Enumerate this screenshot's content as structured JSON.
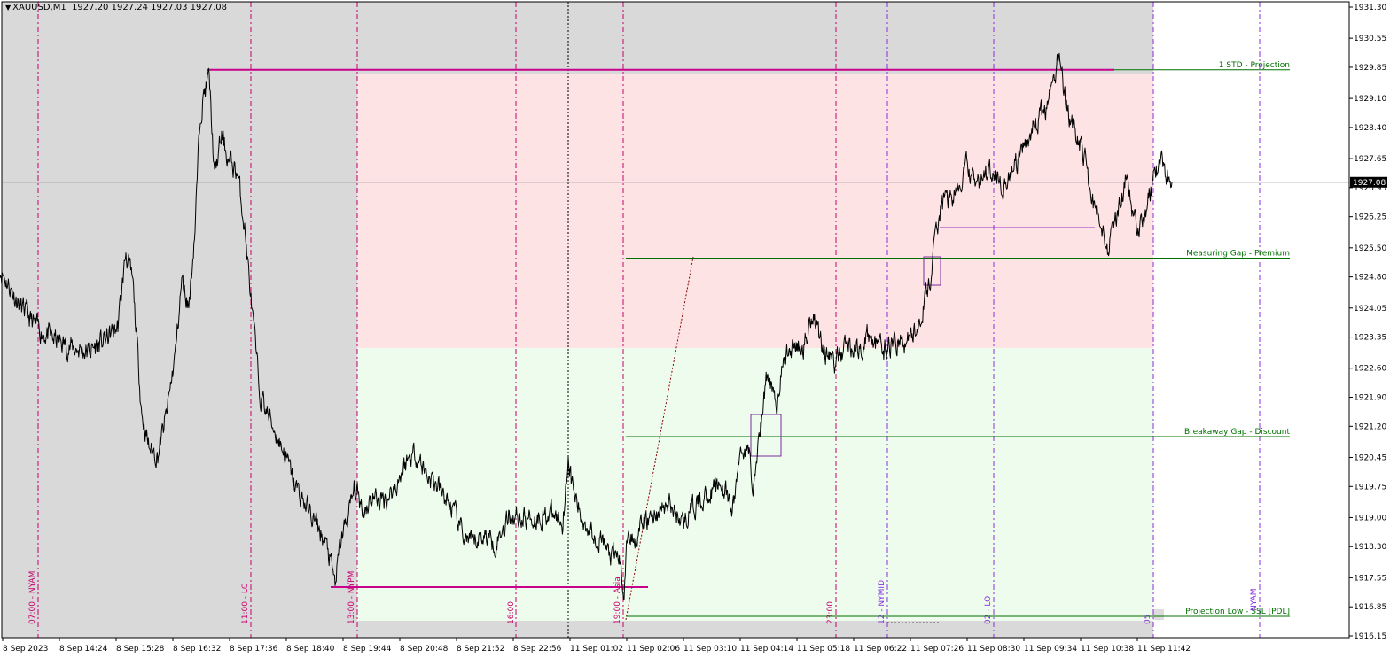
{
  "header": {
    "symbol": "XAUUSD,M1",
    "ohlc": "1927.20 1927.24 1927.03 1927.08"
  },
  "colors": {
    "premium_zone": "#fde3e3",
    "discount_zone": "#eefcee",
    "off_session": "#d9d9d9",
    "price_line": "#000000",
    "session_line": "#c8006e",
    "future_line": "#8a2be2",
    "level_line": "#007000",
    "level_text": "#007000",
    "hl_line": "#c8008c"
  },
  "chart_data": {
    "type": "line",
    "symbol": "XAUUSD",
    "timeframe": "M1",
    "current_price": "1927.08",
    "ylim": [
      1916.15,
      1931.3
    ],
    "y_ticks": [
      "1931.30",
      "1930.55",
      "1929.85",
      "1929.10",
      "1928.40",
      "1927.65",
      "1926.95",
      "1926.25",
      "1925.50",
      "1924.80",
      "1924.05",
      "1923.35",
      "1922.60",
      "1921.90",
      "1921.20",
      "1920.45",
      "1919.75",
      "1919.00",
      "1918.30",
      "1917.55",
      "1916.85",
      "1916.15"
    ],
    "x_ticks": [
      "8 Sep 2023",
      "8 Sep 14:24",
      "8 Sep 15:28",
      "8 Sep 16:32",
      "8 Sep 17:36",
      "8 Sep 18:40",
      "8 Sep 19:44",
      "8 Sep 20:48",
      "8 Sep 21:52",
      "8 Sep 22:56",
      "11 Sep 01:02",
      "11 Sep 02:06",
      "11 Sep 03:10",
      "11 Sep 04:14",
      "11 Sep 05:18",
      "11 Sep 06:22",
      "11 Sep 07:26",
      "11 Sep 08:30",
      "11 Sep 09:34",
      "11 Sep 10:38",
      "11 Sep 11:42"
    ],
    "series": [
      {
        "values": [
          [
            0,
            1925.0
          ],
          [
            20,
            1924.2
          ],
          [
            40,
            1923.6
          ],
          [
            60,
            1923.3
          ],
          [
            80,
            1923.1
          ],
          [
            100,
            1923.0
          ],
          [
            120,
            1923.3
          ],
          [
            133,
            1923.6
          ],
          [
            142,
            1925.4
          ],
          [
            150,
            1924.6
          ],
          [
            160,
            1921.5
          ],
          [
            168,
            1920.7
          ],
          [
            178,
            1920.5
          ],
          [
            188,
            1921.5
          ],
          [
            198,
            1923.0
          ],
          [
            205,
            1924.7
          ],
          [
            213,
            1924.1
          ],
          [
            220,
            1926.0
          ],
          [
            226,
            1928.8
          ],
          [
            231,
            1929.3
          ],
          [
            236,
            1929.6
          ],
          [
            242,
            1927.2
          ],
          [
            250,
            1928.2
          ],
          [
            258,
            1927.6
          ],
          [
            268,
            1927.3
          ],
          [
            276,
            1926.0
          ],
          [
            285,
            1923.8
          ],
          [
            293,
            1922.0
          ],
          [
            302,
            1921.5
          ],
          [
            312,
            1921.0
          ],
          [
            322,
            1920.5
          ],
          [
            332,
            1919.8
          ],
          [
            345,
            1919.3
          ],
          [
            360,
            1918.7
          ],
          [
            370,
            1918.2
          ],
          [
            378,
            1917.4
          ],
          [
            385,
            1918.5
          ],
          [
            392,
            1919.0
          ],
          [
            400,
            1919.7
          ],
          [
            410,
            1919.2
          ],
          [
            420,
            1919.5
          ],
          [
            432,
            1919.4
          ],
          [
            445,
            1919.7
          ],
          [
            457,
            1920.3
          ],
          [
            468,
            1920.6
          ],
          [
            480,
            1920.1
          ],
          [
            495,
            1919.7
          ],
          [
            510,
            1919.2
          ],
          [
            520,
            1918.7
          ],
          [
            532,
            1918.3
          ],
          [
            545,
            1918.6
          ],
          [
            560,
            1918.4
          ],
          [
            575,
            1919.1
          ],
          [
            590,
            1919.0
          ],
          [
            605,
            1919.0
          ],
          [
            620,
            1919.1
          ],
          [
            635,
            1918.9
          ],
          [
            641,
            1920.5
          ],
          [
            645,
            1919.8
          ],
          [
            655,
            1919.0
          ],
          [
            668,
            1918.7
          ],
          [
            680,
            1918.4
          ],
          [
            690,
            1918.0
          ],
          [
            698,
            1918.1
          ],
          [
            704,
            1917.2
          ],
          [
            708,
            1918.6
          ],
          [
            715,
            1918.5
          ],
          [
            725,
            1918.8
          ],
          [
            740,
            1919.1
          ],
          [
            755,
            1919.3
          ],
          [
            770,
            1918.9
          ],
          [
            785,
            1919.3
          ],
          [
            800,
            1919.6
          ],
          [
            815,
            1919.8
          ],
          [
            826,
            1919.1
          ],
          [
            836,
            1920.7
          ],
          [
            845,
            1920.5
          ],
          [
            850,
            1919.8
          ],
          [
            858,
            1921.2
          ],
          [
            866,
            1922.6
          ],
          [
            876,
            1921.8
          ],
          [
            885,
            1922.8
          ],
          [
            895,
            1923.2
          ],
          [
            905,
            1923.0
          ],
          [
            917,
            1924.0
          ],
          [
            928,
            1923.1
          ],
          [
            942,
            1922.7
          ],
          [
            955,
            1923.2
          ],
          [
            968,
            1923.0
          ],
          [
            980,
            1923.4
          ],
          [
            995,
            1923.0
          ],
          [
            1010,
            1923.2
          ],
          [
            1022,
            1923.2
          ],
          [
            1032,
            1923.5
          ],
          [
            1042,
            1924.1
          ],
          [
            1050,
            1924.8
          ],
          [
            1056,
            1925.8
          ],
          [
            1062,
            1926.6
          ],
          [
            1070,
            1926.7
          ],
          [
            1080,
            1926.8
          ],
          [
            1090,
            1927.5
          ],
          [
            1100,
            1927.0
          ],
          [
            1110,
            1927.2
          ],
          [
            1120,
            1927.5
          ],
          [
            1130,
            1927.0
          ],
          [
            1142,
            1927.3
          ],
          [
            1152,
            1927.7
          ],
          [
            1162,
            1928.3
          ],
          [
            1172,
            1928.6
          ],
          [
            1182,
            1928.9
          ],
          [
            1190,
            1929.6
          ],
          [
            1195,
            1930.4
          ],
          [
            1200,
            1929.2
          ],
          [
            1208,
            1928.5
          ],
          [
            1216,
            1928.2
          ],
          [
            1224,
            1927.6
          ],
          [
            1232,
            1926.6
          ],
          [
            1240,
            1926.3
          ],
          [
            1250,
            1925.5
          ],
          [
            1260,
            1926.3
          ],
          [
            1270,
            1927.1
          ],
          [
            1278,
            1926.3
          ],
          [
            1285,
            1926.0
          ],
          [
            1292,
            1926.4
          ],
          [
            1300,
            1927.0
          ],
          [
            1308,
            1927.6
          ],
          [
            1315,
            1927.3
          ],
          [
            1322,
            1927.08
          ]
        ]
      }
    ],
    "levels": [
      {
        "label": "1 STD - Projection",
        "price": 1929.79
      },
      {
        "label": "Measuring Gap - Premium",
        "price": 1925.25
      },
      {
        "label": "Breakaway Gap - Discount",
        "price": 1920.95
      },
      {
        "label": "Projection Low - SSL [PDL]",
        "price": 1916.62
      }
    ],
    "session_labels": [
      "07:00 - NYAM",
      "11:00 - LC",
      "13:00 - NYPM",
      "16:00",
      "19:00 - Asia",
      "23:00",
      "12 - NYMID",
      "02 - LO",
      "05",
      "NYAM"
    ],
    "grid": false
  }
}
